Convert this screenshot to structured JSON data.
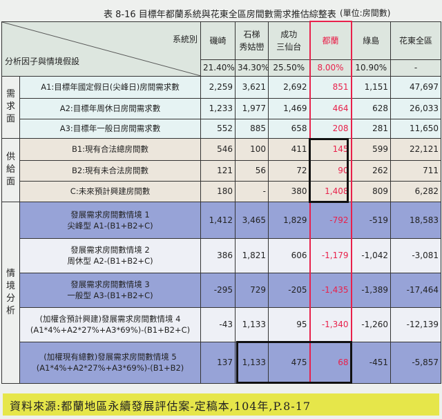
{
  "title": "表 8-16 目標年都蘭系統與花東全區房間數需求推估綜整表",
  "unit": "(單位:房間數)",
  "header": {
    "system_label": "系統別",
    "factor_label": "分析因子與情境假設",
    "columns": [
      {
        "name": "磯崎",
        "pct": "21.40%"
      },
      {
        "name": "石梯\n秀姑巒",
        "pct": "34.30%"
      },
      {
        "name": "成功\n三仙台",
        "pct": "25.50%"
      },
      {
        "name": "都蘭",
        "pct": "8.00%"
      },
      {
        "name": "綠島",
        "pct": "10.90%"
      },
      {
        "name": "花東全區",
        "pct": "-"
      }
    ]
  },
  "groups": [
    "需求面",
    "供給面",
    "情境分析"
  ],
  "rows": [
    {
      "label": "A1:目標年國定假日(尖峰日)房間需求數",
      "values": [
        "2,259",
        "3,621",
        "2,692",
        "851",
        "1,151",
        "47,697"
      ]
    },
    {
      "label": "A2:目標年周休日房間需求數",
      "values": [
        "1,233",
        "1,977",
        "1,469",
        "464",
        "628",
        "26,033"
      ]
    },
    {
      "label": "A3:目標年一般日房間需求數",
      "values": [
        "552",
        "885",
        "658",
        "208",
        "281",
        "11,650"
      ]
    },
    {
      "label": "B1:現有合法總房間數",
      "values": [
        "546",
        "100",
        "411",
        "145",
        "599",
        "22,121"
      ]
    },
    {
      "label": "B2:現有未合法房間數",
      "values": [
        "121",
        "56",
        "72",
        "90",
        "262",
        "711"
      ]
    },
    {
      "label": "C:未來預計興建房間數",
      "values": [
        "180",
        "-",
        "380",
        "1,408",
        "809",
        "6,282"
      ]
    },
    {
      "label": "發展需求房間數情境 1\n尖峰型 A1-(B1+B2+C)",
      "values": [
        "1,412",
        "3,465",
        "1,829",
        "-792",
        "-519",
        "18,583"
      ]
    },
    {
      "label": "發展需求房間數情境 2\n周休型 A2-(B1+B2+C)",
      "values": [
        "386",
        "1,821",
        "606",
        "-1,179",
        "-1,042",
        "-3,081"
      ]
    },
    {
      "label": "發展需求房間數情境 3\n一般型 A3-(B1+B2+C)",
      "values": [
        "-295",
        "729",
        "-205",
        "-1,435",
        "-1,389",
        "-17,464"
      ]
    },
    {
      "label": "(加權含預計興建)發展需求房間數情境 4\n(A1*4%+A2*27%+A3*69%)-(B1+B2+C)",
      "values": [
        "-43",
        "1,133",
        "95",
        "-1,340",
        "-1,260",
        "-12,139"
      ]
    },
    {
      "label": "(加權現有總數)發展需求房間數情境 5\n(A1*4%+A2*27%+A3*69%)-(B1+B2)",
      "values": [
        "137",
        "1,133",
        "475",
        "68",
        "-451",
        "-5,857"
      ]
    }
  ],
  "footer": "資料來源:都蘭地區永續發展評估案-定稿本,104年,P.8-17",
  "colors": {
    "highlight_red": "#e8204a",
    "scenario_blue": "#97a3d7",
    "footer_yellow": "#e6e64a"
  }
}
